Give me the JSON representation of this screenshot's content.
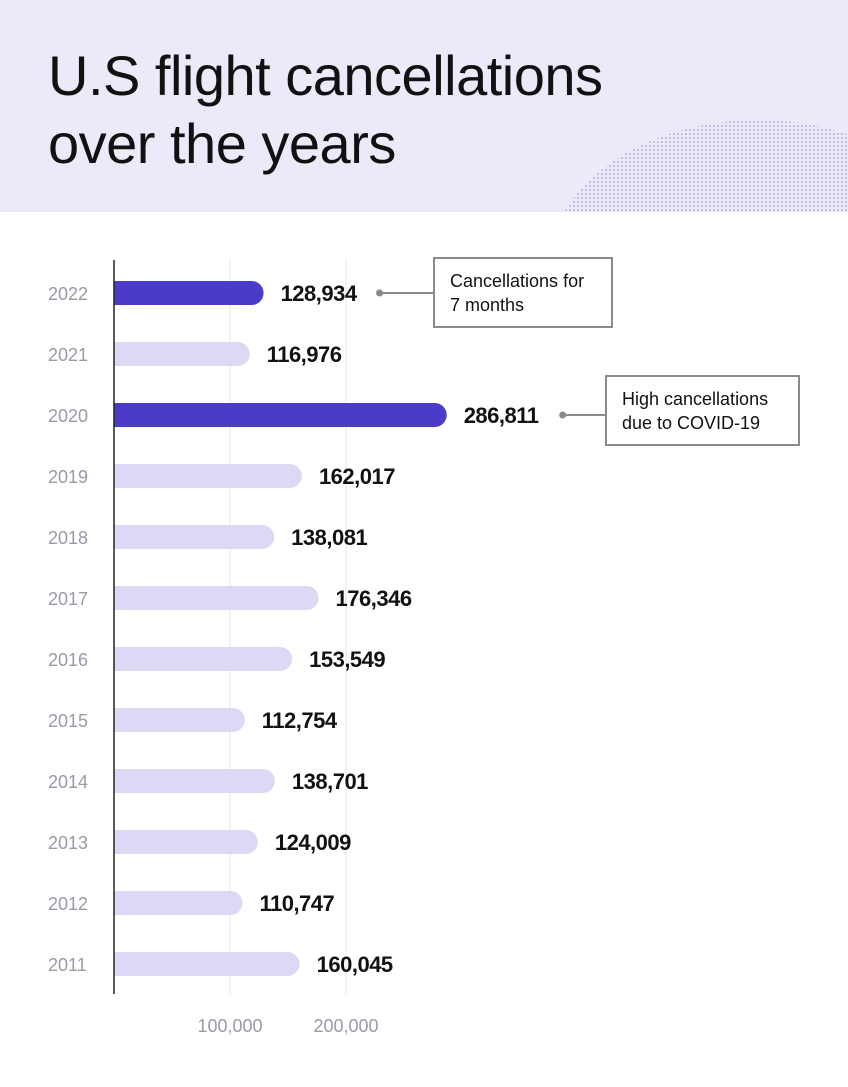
{
  "header": {
    "title_line1": "U.S flight cancellations",
    "title_line2": "over the years"
  },
  "colors": {
    "header_bg": "#eceaf9",
    "highlight_bar": "#4a3bc9",
    "normal_bar": "#dcd9f5",
    "axis": "#222222",
    "gridline": "#e6e6e6",
    "year_text": "#9a9aa6",
    "value_text": "#111111"
  },
  "chart_data": {
    "type": "bar",
    "orientation": "horizontal",
    "title": "U.S flight cancellations over the years",
    "categories": [
      "2022",
      "2021",
      "2020",
      "2019",
      "2018",
      "2017",
      "2016",
      "2015",
      "2014",
      "2013",
      "2012",
      "2011"
    ],
    "values": [
      128934,
      116976,
      286811,
      162017,
      138081,
      176346,
      153549,
      112754,
      138701,
      124009,
      110747,
      160045
    ],
    "value_labels": [
      "128,934",
      "116,976",
      "286,811",
      "162,017",
      "138,081",
      "176,346",
      "153,549",
      "112,754",
      "138,701",
      "124,009",
      "110,747",
      "160,045"
    ],
    "highlighted": [
      "2022",
      "2020"
    ],
    "x_ticks": [
      100000,
      200000
    ],
    "x_tick_labels": [
      "100,000",
      "200,000"
    ],
    "xlim": [
      0,
      290000
    ],
    "grid": true,
    "annotations": [
      {
        "category": "2022",
        "line1": "Cancellations for",
        "line2": "7 months"
      },
      {
        "category": "2020",
        "line1": "High cancellations",
        "line2": "due to COVID-19"
      }
    ]
  }
}
